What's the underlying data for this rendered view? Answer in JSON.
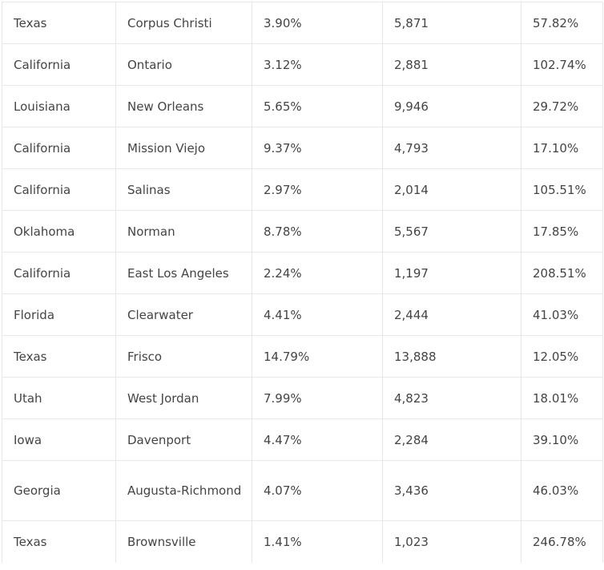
{
  "table": {
    "rows": [
      [
        "Texas",
        "Corpus Christi",
        "3.90%",
        "5,871",
        "57.82%"
      ],
      [
        "California",
        "Ontario",
        "3.12%",
        "2,881",
        "102.74%"
      ],
      [
        "Louisiana",
        "New Orleans",
        "5.65%",
        "9,946",
        "29.72%"
      ],
      [
        "California",
        "Mission Viejo",
        "9.37%",
        "4,793",
        "17.10%"
      ],
      [
        "California",
        "Salinas",
        "2.97%",
        "2,014",
        "105.51%"
      ],
      [
        "Oklahoma",
        "Norman",
        "8.78%",
        "5,567",
        "17.85%"
      ],
      [
        "California",
        "East Los Angeles",
        "2.24%",
        "1,197",
        "208.51%"
      ],
      [
        "Florida",
        "Clearwater",
        "4.41%",
        "2,444",
        "41.03%"
      ],
      [
        "Texas",
        "Frisco",
        "14.79%",
        "13,888",
        "12.05%"
      ],
      [
        "Utah",
        "West Jordan",
        "7.99%",
        "4,823",
        "18.01%"
      ],
      [
        "Iowa",
        "Davenport",
        "4.47%",
        "2,284",
        "39.10%"
      ],
      [
        "Georgia",
        "Augusta-Richmond",
        "4.07%",
        "3,436",
        "46.03%"
      ],
      [
        "Texas",
        "Brownsville",
        "1.41%",
        "1,023",
        "246.78%"
      ]
    ]
  }
}
